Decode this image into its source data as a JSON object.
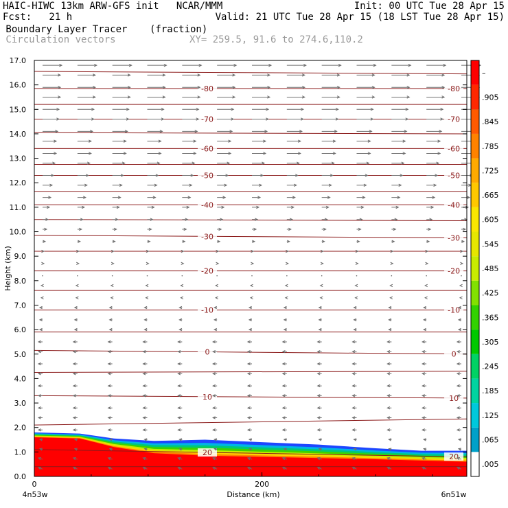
{
  "header": {
    "line1_left": "HAIC-HIWC 13km ARW-GFS init   NCAR/MMM",
    "line1_right": "Init: 00 UTC Tue 28 Apr 15",
    "line2_left": "Fcst:   21 h",
    "line2_right": "Valid: 21 UTC Tue 28 Apr 15 (18 LST Tue 28 Apr 15)",
    "line3_left": " Boundary Layer Tracer",
    "line3_mid": "(fraction)",
    "line4_left": " Circulation vectors",
    "line4_mid": "XY= 259.5, 91.6 to 274.6,110.2"
  },
  "chart_data": {
    "type": "heatmap",
    "xlabel": "Distance (km)",
    "ylabel": "Height (km)",
    "xlim": [
      0,
      380
    ],
    "ylim": [
      0,
      17
    ],
    "x_tick_labels": [
      "0",
      "200"
    ],
    "x_tick_values": [
      0,
      200
    ],
    "y_ticks": [
      "0.0",
      "1.0",
      "2.0",
      "3.0",
      "4.0",
      "5.0",
      "6.0",
      "7.0",
      "8.0",
      "9.0",
      "10.0",
      "11.0",
      "12.0",
      "13.0",
      "14.0",
      "15.0",
      "16.0",
      "17.0"
    ],
    "left_endpoint": "4n53w",
    "right_endpoint": "6n51w",
    "colorbar": {
      "labels": [
        ".005",
        ".065",
        ".125",
        ".185",
        ".245",
        ".305",
        ".365",
        ".425",
        ".485",
        ".545",
        ".605",
        ".665",
        ".725",
        ".785",
        ".845",
        ".905",
        "–"
      ],
      "colors": [
        "#ffffff",
        "#00a0c8",
        "#00c8dc",
        "#00d4a0",
        "#00d264",
        "#00c800",
        "#32d200",
        "#82e100",
        "#c8eb00",
        "#e6e600",
        "#fae600",
        "#ffc800",
        "#ffaa00",
        "#ff8200",
        "#ff5a00",
        "#ff2800",
        "#ff0000"
      ]
    },
    "isotherm_labels": [
      "-80",
      "-70",
      "-60",
      "-50",
      "-40",
      "-30",
      "-20",
      "-10",
      "0",
      "10",
      "20"
    ],
    "isotherms": [
      {
        "label": "20",
        "y_left": 1.1,
        "y_right": 0.8
      },
      {
        "label": "10",
        "y_left": 3.3,
        "y_right": 3.2
      },
      {
        "label": "0",
        "y_left": 5.15,
        "y_right": 5.0
      },
      {
        "label": "-10",
        "y_left": 6.8,
        "y_right": 6.8
      },
      {
        "label": "-20",
        "y_left": 8.4,
        "y_right": 8.4
      },
      {
        "label": "-30",
        "y_left": 9.85,
        "y_right": 9.75
      },
      {
        "label": "-40",
        "y_left": 11.1,
        "y_right": 11.1
      },
      {
        "label": "-50",
        "y_left": 12.3,
        "y_right": 12.3
      },
      {
        "label": "-60",
        "y_left": 13.4,
        "y_right": 13.4
      },
      {
        "label": "-70",
        "y_left": 14.6,
        "y_right": 14.6
      },
      {
        "label": "-80",
        "y_left": 15.85,
        "y_right": 15.85
      }
    ],
    "extra_contours": [
      {
        "y_left": 0.4,
        "y_right": 0.4
      },
      {
        "y_left": 2.1,
        "y_right": 2.35
      },
      {
        "y_left": 4.25,
        "y_right": 4.3
      },
      {
        "y_left": 5.9,
        "y_right": 5.9
      },
      {
        "y_left": 7.6,
        "y_right": 7.6
      },
      {
        "y_left": 9.2,
        "y_right": 9.2
      },
      {
        "y_left": 10.5,
        "y_right": 10.45
      },
      {
        "y_left": 11.65,
        "y_right": 11.65
      },
      {
        "y_left": 12.75,
        "y_right": 12.75
      },
      {
        "y_left": 14.05,
        "y_right": 14.0
      },
      {
        "y_left": 15.2,
        "y_right": 15.2
      },
      {
        "y_left": 16.55,
        "y_right": 16.45
      }
    ],
    "pbl_top": {
      "x": [
        0,
        40,
        70,
        105,
        150,
        200,
        250,
        300,
        340,
        380
      ],
      "top": [
        1.8,
        1.75,
        1.55,
        1.45,
        1.5,
        1.4,
        1.3,
        1.15,
        1.05,
        1.05
      ],
      "red_top": [
        1.6,
        1.55,
        1.2,
        0.95,
        0.85,
        0.8,
        0.75,
        0.7,
        0.65,
        0.6
      ]
    },
    "wind_profile": {
      "heights": [
        0.3,
        0.7,
        1.1,
        1.5,
        1.9,
        2.4,
        2.8,
        3.3,
        3.7,
        4.2,
        4.6,
        5.1,
        5.5,
        6.0,
        6.4,
        6.9,
        7.3,
        7.8,
        8.2,
        8.7,
        9.2,
        9.6,
        10.1,
        10.5,
        11.0,
        11.4,
        11.9,
        12.3,
        12.8,
        13.2,
        13.7,
        14.1,
        14.6,
        15.0,
        15.5,
        15.9,
        16.4,
        16.8
      ],
      "u": [
        -3,
        -3,
        -2,
        -2,
        -3,
        -3,
        -3,
        -3,
        -3,
        -3,
        -3,
        -3,
        -3,
        -2,
        -2,
        -2,
        -1,
        -1,
        0,
        1,
        1,
        2,
        3,
        4,
        5,
        6,
        7,
        8,
        9,
        10,
        10,
        11,
        12,
        12,
        13,
        13,
        13,
        14
      ],
      "w": [
        0.6,
        0.5,
        0.3,
        0.1,
        0,
        0,
        0,
        0,
        0,
        0,
        0,
        0,
        0,
        0,
        0,
        0,
        0,
        0,
        0,
        0,
        0,
        0,
        0,
        0,
        0,
        0,
        0,
        0,
        0,
        0,
        0,
        0,
        0,
        0,
        0,
        0,
        0,
        0
      ]
    }
  }
}
